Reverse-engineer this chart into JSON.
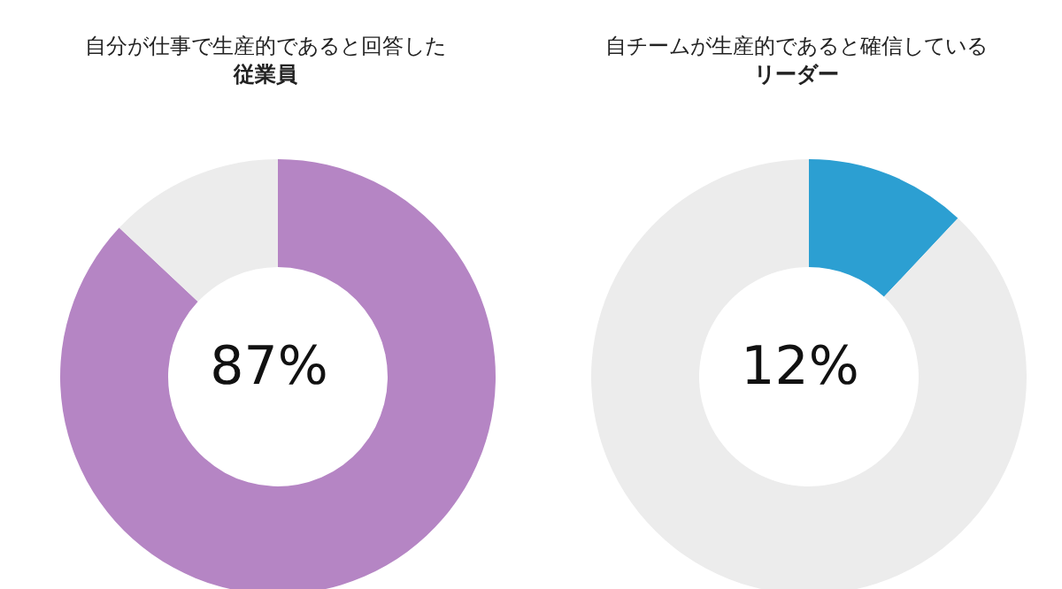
{
  "chart_data": [
    {
      "type": "donut",
      "title": "自分が仕事で生産的であると回答した",
      "subtitle": "従業員",
      "categories": [
        null,
        null
      ],
      "values": [
        87,
        13
      ],
      "colors": [
        "#b585c4",
        "#ececec"
      ],
      "annotations": [
        "87%"
      ],
      "legend": false
    },
    {
      "type": "donut",
      "title": "自チームが生産的であると確信している",
      "subtitle": "リーダー",
      "categories": [
        null,
        null
      ],
      "values": [
        12,
        88
      ],
      "colors": [
        "#2c9fd2",
        "#ececec"
      ],
      "annotations": [
        "12%"
      ],
      "legend": false
    }
  ]
}
